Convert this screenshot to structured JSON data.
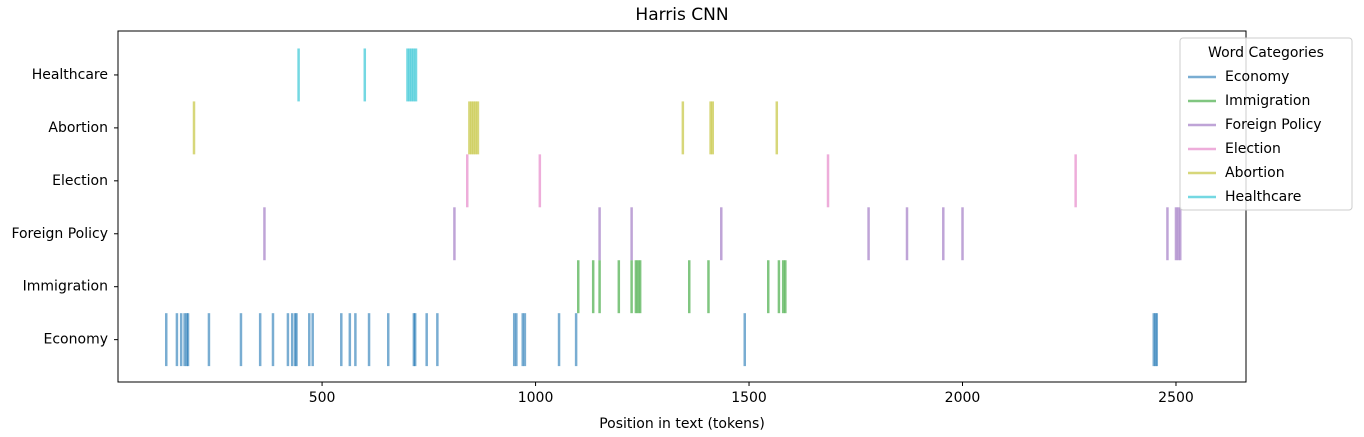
{
  "chart_data": {
    "type": "eventplot",
    "title": "Harris CNN",
    "x_label": "Position in text (tokens)",
    "xlim": [
      22,
      2664
    ],
    "xticks": [
      500,
      1000,
      1500,
      2000,
      2500
    ],
    "ylim": [
      -0.8,
      5.83
    ],
    "legend_title": "Word Categories",
    "legend_position": "upper right",
    "series": [
      {
        "name": "Economy",
        "color": "#1f77b4",
        "values": [
          135,
          160,
          170,
          178,
          183,
          186,
          235,
          310,
          355,
          385,
          420,
          430,
          437,
          440,
          470,
          478,
          545,
          565,
          578,
          610,
          655,
          715,
          718,
          745,
          770,
          950,
          955,
          970,
          975,
          1055,
          1095,
          1490,
          2448,
          2452,
          2455
        ]
      },
      {
        "name": "Immigration",
        "color": "#2ca02c",
        "values": [
          1100,
          1135,
          1150,
          1195,
          1225,
          1235,
          1240,
          1245,
          1360,
          1405,
          1545,
          1570,
          1580,
          1585
        ]
      },
      {
        "name": "Foreign Policy",
        "color": "#9467bd",
        "values": [
          365,
          810,
          1150,
          1225,
          1435,
          1780,
          1870,
          1955,
          2000,
          2480,
          2500,
          2505,
          2510
        ]
      },
      {
        "name": "Election",
        "color": "#e377c2",
        "values": [
          840,
          1010,
          1685,
          2265
        ]
      },
      {
        "name": "Abortion",
        "color": "#bcbd22",
        "values": [
          200,
          845,
          850,
          855,
          860,
          865,
          1345,
          1410,
          1415,
          1565
        ]
      },
      {
        "name": "Healthcare",
        "color": "#17becf",
        "values": [
          445,
          600,
          700,
          705,
          710,
          715,
          720
        ]
      }
    ]
  }
}
